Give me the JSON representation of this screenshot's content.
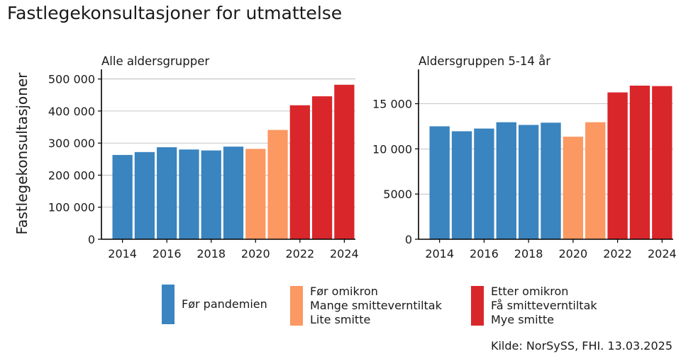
{
  "title": "Fastlegekonsultasjoner for utmattelse",
  "ylabel": "Fastlegekonsultasjoner",
  "source": "Kilde: NorSySS, FHI. 13.03.2025",
  "colors": {
    "pre": "#3a84bf",
    "before_omicron": "#fc9862",
    "after_omicron": "#d9262b"
  },
  "legend": [
    {
      "key": "pre",
      "lines": [
        "Før pandemien"
      ]
    },
    {
      "key": "before_omicron",
      "lines": [
        "Før omikron",
        "Mange smitteverntiltak",
        "Lite smitte"
      ]
    },
    {
      "key": "after_omicron",
      "lines": [
        "Etter omikron",
        "Få smitteverntiltak",
        "Mye smitte"
      ]
    }
  ],
  "chart_data": [
    {
      "type": "bar",
      "title": "Alle aldersgrupper",
      "x": [
        2014,
        2015,
        2016,
        2017,
        2018,
        2019,
        2020,
        2021,
        2022,
        2023,
        2024
      ],
      "values": [
        263000,
        272000,
        287000,
        280000,
        277000,
        289000,
        282000,
        341000,
        418000,
        446000,
        482000
      ],
      "groups": [
        "pre",
        "pre",
        "pre",
        "pre",
        "pre",
        "pre",
        "before_omicron",
        "before_omicron",
        "after_omicron",
        "after_omicron",
        "after_omicron"
      ],
      "ylim": [
        0,
        530000
      ],
      "yticks": [
        0,
        100000,
        200000,
        300000,
        400000,
        500000
      ],
      "ytick_labels": [
        "0",
        "100 000",
        "200 000",
        "300 000",
        "400 000",
        "500 000"
      ],
      "xticks": [
        2014,
        2016,
        2018,
        2020,
        2022,
        2024
      ],
      "xtick_labels": [
        "2014",
        "2016",
        "2018",
        "2020",
        "2022",
        "2024"
      ]
    },
    {
      "type": "bar",
      "title": "Aldersgruppen 5-14 år",
      "x": [
        2014,
        2015,
        2016,
        2017,
        2018,
        2019,
        2020,
        2021,
        2022,
        2023,
        2024
      ],
      "values": [
        12500,
        11950,
        12250,
        12950,
        12650,
        12900,
        11350,
        12950,
        16250,
        17000,
        16950
      ],
      "groups": [
        "pre",
        "pre",
        "pre",
        "pre",
        "pre",
        "pre",
        "before_omicron",
        "before_omicron",
        "after_omicron",
        "after_omicron",
        "after_omicron"
      ],
      "ylim": [
        0,
        18800
      ],
      "yticks": [
        0,
        5000,
        10000,
        15000
      ],
      "ytick_labels": [
        "0",
        "5000",
        "10 000",
        "15 000"
      ],
      "xticks": [
        2014,
        2016,
        2018,
        2020,
        2022,
        2024
      ],
      "xtick_labels": [
        "2014",
        "2016",
        "2018",
        "2020",
        "2022",
        "2024"
      ]
    }
  ]
}
